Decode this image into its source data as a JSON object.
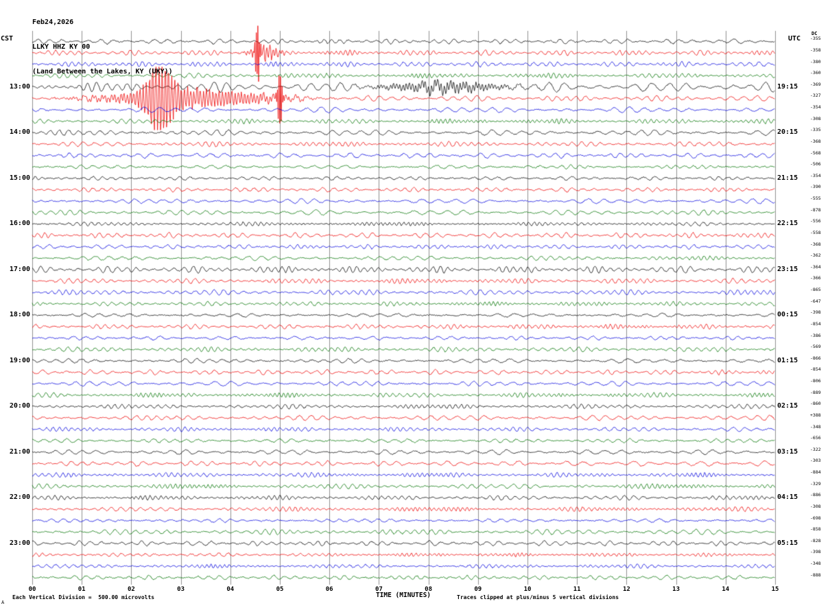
{
  "header": {
    "date": "Feb24,2026",
    "station": "LLKY HHZ KY 00",
    "station_name": "(Land Between the Lakes, KY (UKY))"
  },
  "chart_data": {
    "type": "seismogram-helicorder",
    "title": "LLKY HHZ KY 00 (Land Between the Lakes, KY (UKY))",
    "date": "Feb24,2026",
    "left_timezone": "CST",
    "right_timezone": "UTC",
    "dc_header": "DC",
    "x_axis_label": "TIME (MINUTES)",
    "minute_ticks": [
      "00",
      "01",
      "02",
      "03",
      "04",
      "05",
      "06",
      "07",
      "08",
      "09",
      "10",
      "11",
      "12",
      "13",
      "14",
      "15"
    ],
    "minutes_per_line": 15,
    "rows": 48,
    "trace_colors": [
      "#000000",
      "#ee0000",
      "#0000dd",
      "#007300"
    ],
    "grid_color": "#8f8f8f",
    "left_time_labels": [
      {
        "row": 4,
        "label": "13:00"
      },
      {
        "row": 8,
        "label": "14:00"
      },
      {
        "row": 12,
        "label": "15:00"
      },
      {
        "row": 16,
        "label": "16:00"
      },
      {
        "row": 20,
        "label": "17:00"
      },
      {
        "row": 24,
        "label": "18:00"
      },
      {
        "row": 28,
        "label": "19:00"
      },
      {
        "row": 32,
        "label": "20:00"
      },
      {
        "row": 36,
        "label": "21:00"
      },
      {
        "row": 40,
        "label": "22:00"
      },
      {
        "row": 44,
        "label": "23:00"
      }
    ],
    "right_time_labels": [
      {
        "row": 4,
        "label": "19:15"
      },
      {
        "row": 8,
        "label": "20:15"
      },
      {
        "row": 12,
        "label": "21:15"
      },
      {
        "row": 16,
        "label": "22:15"
      },
      {
        "row": 20,
        "label": "23:15"
      },
      {
        "row": 24,
        "label": "00:15"
      },
      {
        "row": 28,
        "label": "01:15"
      },
      {
        "row": 32,
        "label": "02:15"
      },
      {
        "row": 36,
        "label": "03:15"
      },
      {
        "row": 40,
        "label": "04:15"
      },
      {
        "row": 44,
        "label": "05:15"
      }
    ],
    "dc_values": [
      "-355",
      "-358",
      "-380",
      "-360",
      "-369",
      "-327",
      "-354",
      "-308",
      "-335",
      "-368",
      "-568",
      "-506",
      "-354",
      "-390",
      "-555",
      "-878",
      "-556",
      "-558",
      "-368",
      "-362",
      "-364",
      "-366",
      "-865",
      "-647",
      "-398",
      "-854",
      "-386",
      "-569",
      "-866",
      "-854",
      "-806",
      "-889",
      "-860",
      "+388",
      "-348",
      "-656",
      "-322",
      "-303",
      "-884",
      "-329",
      "-886",
      "-308",
      "-698",
      "-858",
      "-828",
      "-398",
      "-348",
      "-888"
    ],
    "footnote_left": "Each Vertical Division =  500.00 microvolts",
    "footnote_right": "Traces clipped at plus/minus 5 vertical divisions",
    "corner_mark": "A",
    "events": [
      {
        "row": 1,
        "minute": 4.55,
        "amplitude": 40,
        "width_minutes": 0.05
      },
      {
        "row": 1,
        "minute": 4.7,
        "amplitude": 10,
        "width_minutes": 0.3
      },
      {
        "row": 4,
        "minute": 8.3,
        "amplitude": 7,
        "width_minutes": 1.2
      },
      {
        "row": 5,
        "minute": 2.58,
        "amplitude": 46,
        "width_minutes": 0.28
      },
      {
        "row": 5,
        "minute": 3.2,
        "amplitude": 13,
        "width_minutes": 1.6
      },
      {
        "row": 5,
        "minute": 5.0,
        "amplitude": 38,
        "width_minutes": 0.05
      }
    ],
    "row_amplitude_factors": {
      "0": 1.35,
      "1": 1.4,
      "2": 1.15,
      "4": 1.85,
      "5": 1.25,
      "8": 1.15,
      "20": 1.3
    }
  }
}
